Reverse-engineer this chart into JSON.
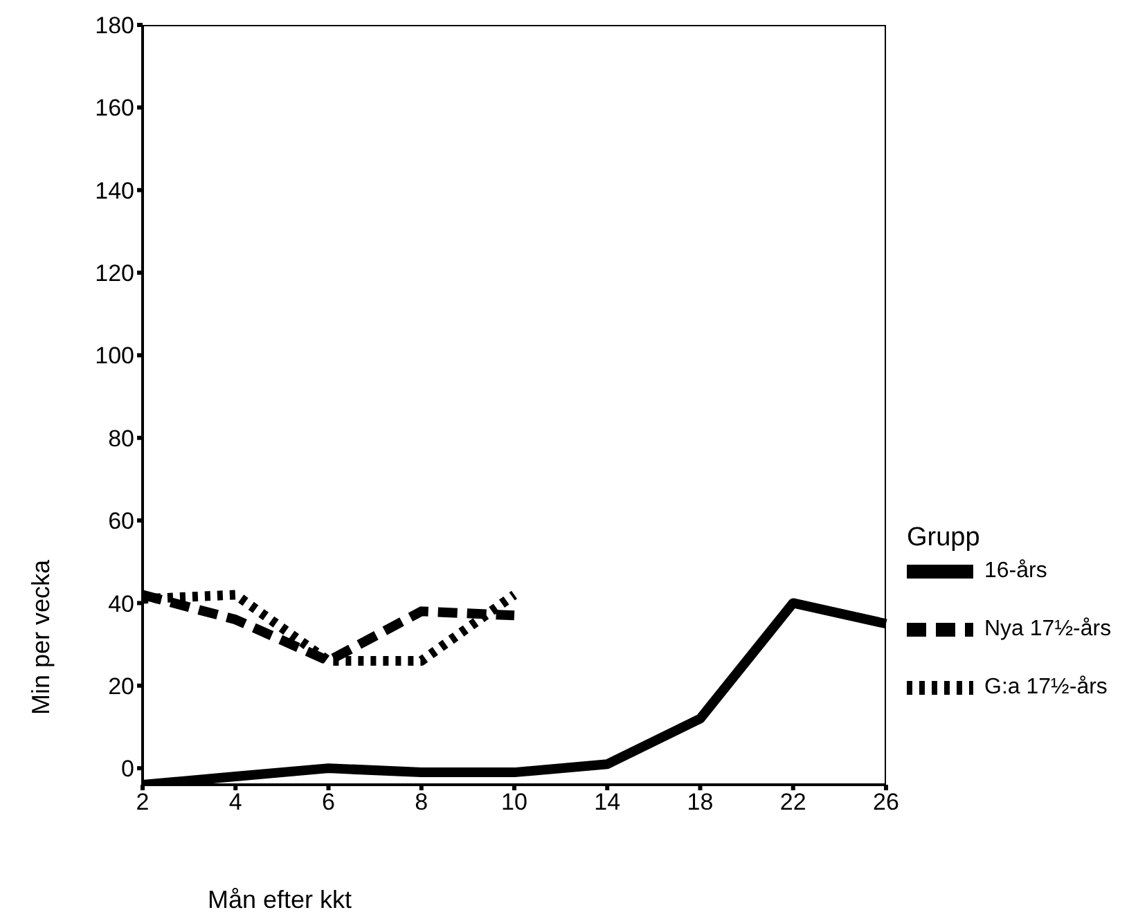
{
  "chart_data": {
    "type": "line",
    "xlabel": "Mån efter kkt",
    "ylabel": "Min per vecka",
    "legend_title": "Grupp",
    "categories": [
      "2",
      "4",
      "6",
      "8",
      "10",
      "14",
      "18",
      "22",
      "26"
    ],
    "series": [
      {
        "name": "16-års",
        "color": "#000000",
        "line_style": "solid",
        "values": [
          -4,
          -2,
          0,
          -1,
          -1,
          1,
          12,
          40,
          35
        ]
      },
      {
        "name": "Nya 17½-års",
        "color": "#000000",
        "line_style": "dashed",
        "values": [
          42,
          36,
          26,
          38,
          37,
          null,
          null,
          null,
          null
        ]
      },
      {
        "name": "G:a 17½-års",
        "color": "#000000",
        "line_style": "dotted",
        "values": [
          41,
          42,
          26,
          26,
          42,
          null,
          null,
          null,
          null
        ]
      }
    ],
    "ylim": [
      -4,
      180
    ],
    "yticks": [
      0,
      20,
      40,
      60,
      80,
      100,
      120,
      140,
      160,
      180
    ],
    "grid": false,
    "legend": "right",
    "marker": "none"
  }
}
